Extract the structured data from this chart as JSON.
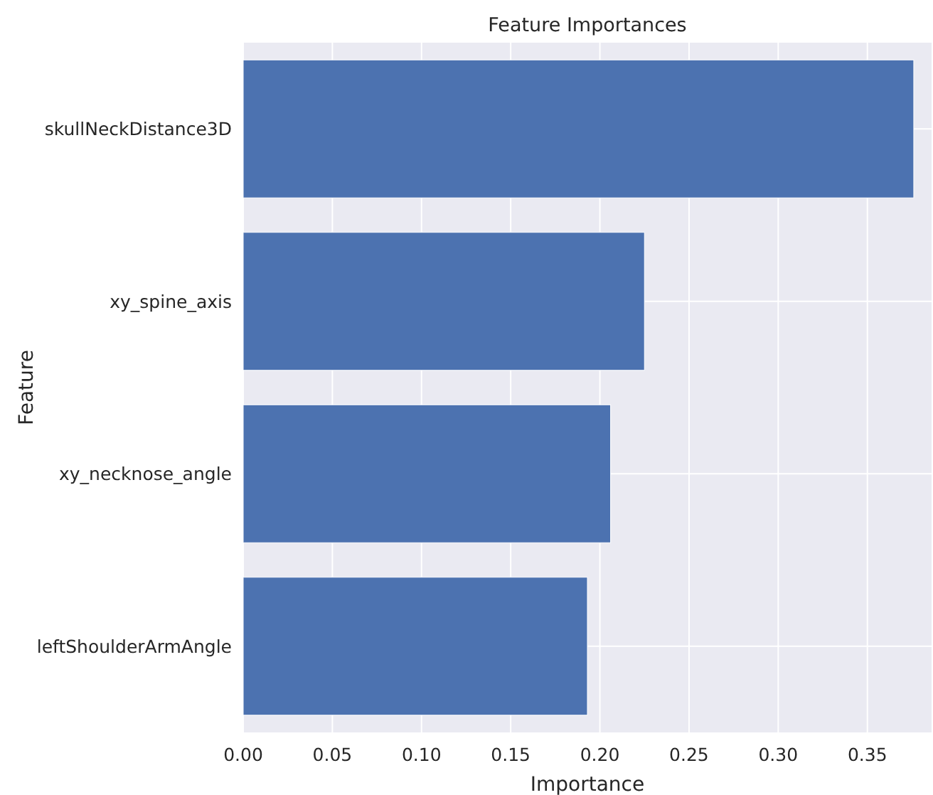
{
  "chart_data": {
    "type": "bar",
    "orientation": "horizontal",
    "title": "Feature Importances",
    "xlabel": "Importance",
    "ylabel": "Feature",
    "categories": [
      "skullNeckDistance3D",
      "xy_spine_axis",
      "xy_necknose_angle",
      "leftShoulderArmAngle"
    ],
    "values": [
      0.376,
      0.225,
      0.206,
      0.193
    ],
    "color": "#4c72b0",
    "xlim": [
      0,
      0.386
    ],
    "xticks": [
      {
        "value": 0,
        "label": "0.00"
      },
      {
        "value": 0.05,
        "label": "0.05"
      },
      {
        "value": 0.1,
        "label": "0.10"
      },
      {
        "value": 0.15,
        "label": "0.15"
      },
      {
        "value": 0.2,
        "label": "0.20"
      },
      {
        "value": 0.25,
        "label": "0.25"
      },
      {
        "value": 0.3,
        "label": "0.30"
      },
      {
        "value": 0.35,
        "label": "0.35"
      }
    ],
    "grid": true
  }
}
